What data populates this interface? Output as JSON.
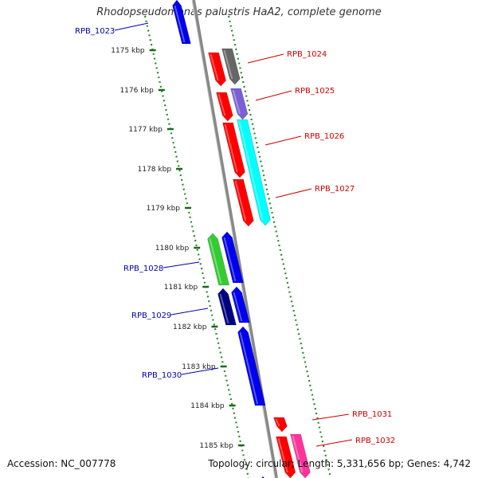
{
  "title": "Rhodopseudomonas palustris HaA2, complete genome",
  "footer": {
    "accession": "Accession: NC_007778",
    "summary": "Topology: circular; Length: 5,331,656 bp; Genes: 4,742"
  },
  "scale_labels": [
    "1175 kbp",
    "1176 kbp",
    "1177 kbp",
    "1178 kbp",
    "1179 kbp",
    "1180 kbp",
    "1181 kbp",
    "1182 kbp",
    "1183 kbp",
    "1184 kbp",
    "1185 kbp"
  ],
  "colors": {
    "backbone": "#888888",
    "tick": "#2a8a2a",
    "label_forward": "#cc0000",
    "label_reverse": "#0000aa",
    "red": "#ff0000",
    "blue": "#0000ee",
    "navy": "#000080",
    "green": "#33cc33",
    "gray": "#666666",
    "violet": "#7a60d6",
    "cyan": "#00ffff",
    "magenta": "#ff3399"
  },
  "genes": [
    {
      "label": "RPB_1023",
      "strand": "reverse",
      "color": "blue"
    },
    {
      "label": "RPB_1024",
      "strand": "forward",
      "color": "gray"
    },
    {
      "label": "",
      "strand": "forward",
      "color": "red"
    },
    {
      "label": "RPB_1025",
      "strand": "forward",
      "color": "violet"
    },
    {
      "label": "",
      "strand": "forward",
      "color": "red"
    },
    {
      "label": "RPB_1026",
      "strand": "forward",
      "color": "red"
    },
    {
      "label": "RPB_1027",
      "strand": "forward",
      "color": "cyan"
    },
    {
      "label": "",
      "strand": "forward",
      "color": "red"
    },
    {
      "label": "RPB_1028",
      "strand": "reverse",
      "color": "green"
    },
    {
      "label": "",
      "strand": "reverse",
      "color": "blue"
    },
    {
      "label": "RPB_1029",
      "strand": "reverse",
      "color": "navy"
    },
    {
      "label": "",
      "strand": "reverse",
      "color": "blue"
    },
    {
      "label": "RPB_1030",
      "strand": "reverse",
      "color": "blue"
    },
    {
      "label": "RPB_1031",
      "strand": "forward",
      "color": "red"
    },
    {
      "label": "RPB_1032",
      "strand": "forward",
      "color": "magenta"
    },
    {
      "label": "",
      "strand": "forward",
      "color": "red"
    },
    {
      "label": "",
      "strand": "reverse",
      "color": "blue"
    }
  ]
}
